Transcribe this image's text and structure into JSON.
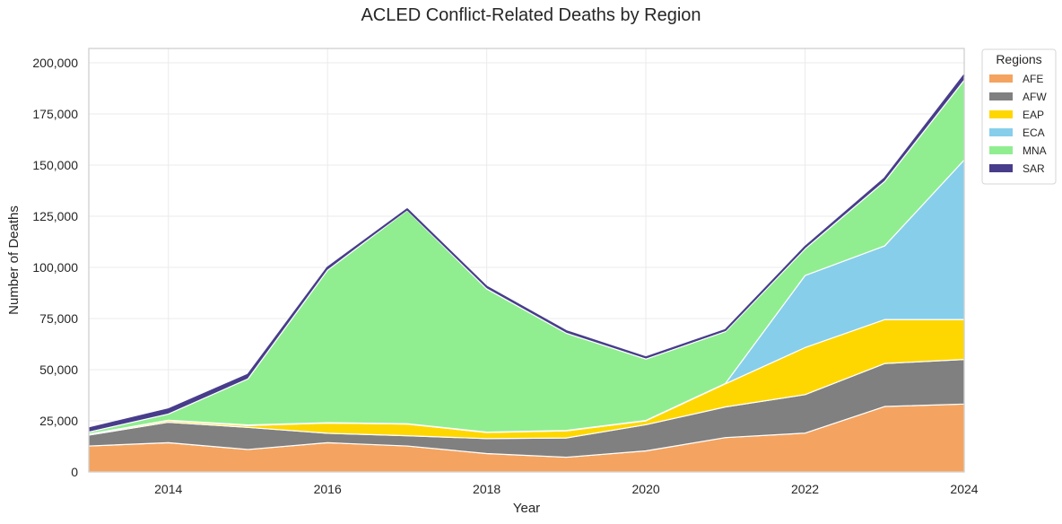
{
  "chart_data": {
    "type": "area",
    "stacked": true,
    "title": "ACLED Conflict-Related Deaths by Region",
    "xlabel": "Year",
    "ylabel": "Number of Deaths",
    "x": [
      2013,
      2014,
      2015,
      2016,
      2017,
      2018,
      2019,
      2020,
      2021,
      2022,
      2023,
      2024
    ],
    "xlim": [
      2013,
      2024
    ],
    "ylim": [
      0,
      207000
    ],
    "xticks": [
      2014,
      2016,
      2018,
      2020,
      2022,
      2024
    ],
    "xtick_labels": [
      "2014",
      "2016",
      "2018",
      "2020",
      "2022",
      "2024"
    ],
    "yticks": [
      0,
      25000,
      50000,
      75000,
      100000,
      125000,
      150000,
      175000,
      200000
    ],
    "ytick_labels": [
      "0",
      "25,000",
      "50,000",
      "75,000",
      "100,000",
      "125,000",
      "150,000",
      "175,000",
      "200,000"
    ],
    "grid": true,
    "legend": {
      "title": "Regions",
      "placement": "outside-top-right"
    },
    "series": [
      {
        "name": "AFE",
        "color": "#F4A460",
        "values": [
          12700,
          14300,
          11000,
          14300,
          12700,
          9000,
          7200,
          10300,
          16800,
          19000,
          32000,
          33200
        ]
      },
      {
        "name": "AFW",
        "color": "#808080",
        "values": [
          5300,
          10000,
          10800,
          4600,
          5000,
          7300,
          9400,
          12800,
          15000,
          18800,
          21000,
          21800
        ]
      },
      {
        "name": "EAP",
        "color": "#FFD700",
        "values": [
          400,
          800,
          900,
          5000,
          5700,
          3000,
          3500,
          1900,
          11300,
          23000,
          21500,
          19500
        ]
      },
      {
        "name": "ECA",
        "color": "#87CEEB",
        "values": [
          100,
          200,
          300,
          200,
          200,
          200,
          200,
          200,
          200,
          35200,
          36000,
          78000
        ]
      },
      {
        "name": "MNA",
        "color": "#90EE90",
        "values": [
          1000,
          3000,
          22500,
          74500,
          104300,
          70000,
          47500,
          30000,
          25300,
          13000,
          31500,
          39000
        ]
      },
      {
        "name": "SAR",
        "color": "#483D8B",
        "values": [
          1800,
          2300,
          2000,
          1300,
          500,
          1000,
          1000,
          800,
          800,
          1000,
          1500,
          2500
        ]
      }
    ]
  }
}
